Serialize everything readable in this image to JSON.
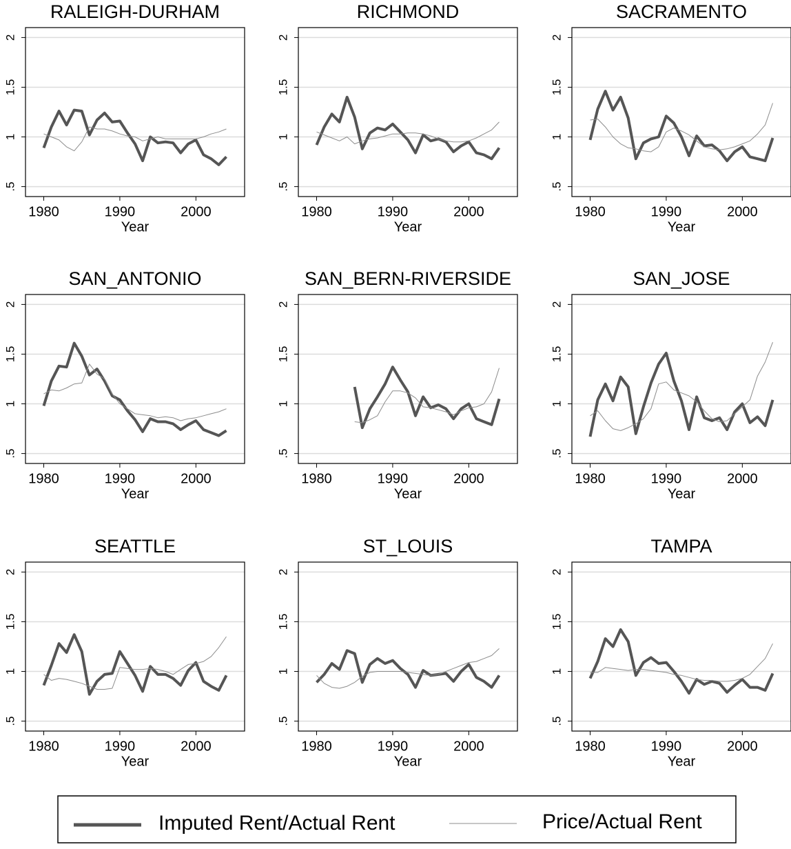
{
  "chart_data": [
    {
      "type": "line",
      "title": "RALEIGH-DURHAM",
      "xlabel": "Year",
      "x": [
        1980,
        1981,
        1982,
        1983,
        1984,
        1985,
        1986,
        1987,
        1988,
        1989,
        1990,
        1991,
        1992,
        1993,
        1994,
        1995,
        1996,
        1997,
        1998,
        1999,
        2000,
        2001,
        2002,
        2003,
        2004
      ],
      "xlim": [
        1977.6,
        2006.4
      ],
      "ylim": [
        0.4,
        2.1
      ],
      "xticks": [
        1980,
        1990,
        2000
      ],
      "yticks": [
        {
          "value": 0.5,
          "label": ".5"
        },
        1,
        1.5,
        2
      ],
      "grid": true,
      "series": [
        {
          "name": "Imputed Rent/Actual Rent",
          "color": "#555555",
          "values": [
            0.89,
            1.1,
            1.26,
            1.12,
            1.27,
            1.26,
            1.02,
            1.17,
            1.24,
            1.15,
            1.16,
            1.04,
            0.93,
            0.76,
            1.0,
            0.94,
            0.95,
            0.94,
            0.84,
            0.93,
            0.97,
            0.82,
            0.78,
            0.72,
            0.8
          ]
        },
        {
          "name": "Price/Actual Rent",
          "color": "#8c8c8c",
          "values": [
            1.03,
            1.0,
            0.97,
            0.9,
            0.86,
            0.95,
            1.1,
            1.08,
            1.08,
            1.06,
            1.03,
            1.01,
            1.0,
            0.96,
            0.98,
            1.0,
            0.98,
            0.98,
            0.98,
            0.98,
            0.98,
            1.0,
            1.03,
            1.05,
            1.08
          ]
        }
      ]
    },
    {
      "type": "line",
      "title": "RICHMOND",
      "xlabel": "Year",
      "x": [
        1980,
        1981,
        1982,
        1983,
        1984,
        1985,
        1986,
        1987,
        1988,
        1989,
        1990,
        1991,
        1992,
        1993,
        1994,
        1995,
        1996,
        1997,
        1998,
        1999,
        2000,
        2001,
        2002,
        2003,
        2004
      ],
      "xlim": [
        1977.6,
        2006.4
      ],
      "ylim": [
        0.4,
        2.1
      ],
      "xticks": [
        1980,
        1990,
        2000
      ],
      "yticks": [
        {
          "value": 0.5,
          "label": ".5"
        },
        1,
        1.5,
        2
      ],
      "grid": true,
      "series": [
        {
          "color": "#555555",
          "values": [
            0.92,
            1.1,
            1.23,
            1.15,
            1.4,
            1.2,
            0.88,
            1.04,
            1.09,
            1.07,
            1.13,
            1.05,
            0.97,
            0.84,
            1.02,
            0.96,
            0.98,
            0.95,
            0.85,
            0.91,
            0.95,
            0.84,
            0.82,
            0.78,
            0.89
          ]
        },
        {
          "color": "#8c8c8c",
          "values": [
            1.05,
            1.02,
            0.99,
            0.96,
            1.0,
            0.93,
            0.96,
            0.98,
            0.99,
            1.01,
            1.03,
            1.03,
            1.04,
            1.04,
            1.03,
            1.01,
            0.98,
            0.96,
            0.95,
            0.95,
            0.96,
            0.99,
            1.03,
            1.07,
            1.15
          ]
        }
      ]
    },
    {
      "type": "line",
      "title": "SACRAMENTO",
      "xlabel": "Year",
      "x": [
        1980,
        1981,
        1982,
        1983,
        1984,
        1985,
        1986,
        1987,
        1988,
        1989,
        1990,
        1991,
        1992,
        1993,
        1994,
        1995,
        1996,
        1997,
        1998,
        1999,
        2000,
        2001,
        2002,
        2003,
        2004
      ],
      "xlim": [
        1977.6,
        2006.4
      ],
      "ylim": [
        0.4,
        2.1
      ],
      "xticks": [
        1980,
        1990,
        2000
      ],
      "yticks": [
        {
          "value": 0.5,
          "label": ".5"
        },
        1,
        1.5,
        2
      ],
      "grid": true,
      "series": [
        {
          "color": "#555555",
          "values": [
            0.97,
            1.28,
            1.46,
            1.27,
            1.4,
            1.19,
            0.78,
            0.94,
            0.98,
            1.0,
            1.21,
            1.14,
            1.0,
            0.81,
            1.01,
            0.91,
            0.92,
            0.86,
            0.76,
            0.85,
            0.9,
            0.8,
            0.78,
            0.76,
            0.99
          ]
        },
        {
          "color": "#8c8c8c",
          "values": [
            1.17,
            1.18,
            1.1,
            1.0,
            0.93,
            0.89,
            0.88,
            0.86,
            0.85,
            0.9,
            1.05,
            1.09,
            1.06,
            1.02,
            0.96,
            0.9,
            0.88,
            0.87,
            0.88,
            0.9,
            0.93,
            0.96,
            1.03,
            1.12,
            1.34
          ]
        }
      ]
    },
    {
      "type": "line",
      "title": "SAN_ANTONIO",
      "xlabel": "Year",
      "x": [
        1980,
        1981,
        1982,
        1983,
        1984,
        1985,
        1986,
        1987,
        1988,
        1989,
        1990,
        1991,
        1992,
        1993,
        1994,
        1995,
        1996,
        1997,
        1998,
        1999,
        2000,
        2001,
        2002,
        2003,
        2004
      ],
      "xlim": [
        1977.6,
        2006.4
      ],
      "ylim": [
        0.4,
        2.1
      ],
      "xticks": [
        1980,
        1990,
        2000
      ],
      "yticks": [
        {
          "value": 0.5,
          "label": ".5"
        },
        1,
        1.5,
        2
      ],
      "grid": true,
      "series": [
        {
          "color": "#555555",
          "values": [
            0.98,
            1.23,
            1.38,
            1.37,
            1.61,
            1.48,
            1.29,
            1.35,
            1.23,
            1.08,
            1.04,
            0.93,
            0.84,
            0.72,
            0.85,
            0.82,
            0.82,
            0.8,
            0.74,
            0.79,
            0.83,
            0.74,
            0.71,
            0.68,
            0.73
          ]
        },
        {
          "color": "#8c8c8c",
          "values": [
            1.1,
            1.14,
            1.13,
            1.16,
            1.2,
            1.21,
            1.4,
            1.3,
            1.25,
            1.1,
            1.0,
            0.95,
            0.9,
            0.89,
            0.88,
            0.86,
            0.87,
            0.86,
            0.83,
            0.85,
            0.86,
            0.88,
            0.9,
            0.92,
            0.95
          ]
        }
      ]
    },
    {
      "type": "line",
      "title": "SAN_BERN-RIVERSIDE",
      "xlabel": "Year",
      "x": [
        1980,
        1981,
        1982,
        1983,
        1984,
        1985,
        1986,
        1987,
        1988,
        1989,
        1990,
        1991,
        1992,
        1993,
        1994,
        1995,
        1996,
        1997,
        1998,
        1999,
        2000,
        2001,
        2002,
        2003,
        2004
      ],
      "xlim": [
        1977.6,
        2006.4
      ],
      "ylim": [
        0.4,
        2.1
      ],
      "xticks": [
        1980,
        1990,
        2000
      ],
      "yticks": [
        {
          "value": 0.5,
          "label": ".5"
        },
        1,
        1.5,
        2
      ],
      "grid": true,
      "series": [
        {
          "color": "#555555",
          "values": [
            null,
            null,
            null,
            null,
            null,
            1.17,
            0.76,
            0.95,
            1.07,
            1.2,
            1.37,
            1.24,
            1.12,
            0.88,
            1.07,
            0.96,
            0.99,
            0.95,
            0.85,
            0.95,
            1.0,
            0.85,
            0.82,
            0.79,
            1.05
          ]
        },
        {
          "color": "#8c8c8c",
          "values": [
            null,
            null,
            null,
            null,
            null,
            0.82,
            0.81,
            0.84,
            0.88,
            1.02,
            1.13,
            1.13,
            1.11,
            1.06,
            0.97,
            0.96,
            0.94,
            0.92,
            0.89,
            0.93,
            0.96,
            0.97,
            1.0,
            1.12,
            1.36
          ]
        }
      ]
    },
    {
      "type": "line",
      "title": "SAN_JOSE",
      "xlabel": "Year",
      "x": [
        1980,
        1981,
        1982,
        1983,
        1984,
        1985,
        1986,
        1987,
        1988,
        1989,
        1990,
        1991,
        1992,
        1993,
        1994,
        1995,
        1996,
        1997,
        1998,
        1999,
        2000,
        2001,
        2002,
        2003,
        2004
      ],
      "xlim": [
        1977.6,
        2006.4
      ],
      "ylim": [
        0.4,
        2.1
      ],
      "xticks": [
        1980,
        1990,
        2000
      ],
      "yticks": [
        {
          "value": 0.5,
          "label": ".5"
        },
        1,
        1.5,
        2
      ],
      "grid": true,
      "series": [
        {
          "color": "#555555",
          "values": [
            0.67,
            1.04,
            1.2,
            1.03,
            1.27,
            1.17,
            0.7,
            0.97,
            1.21,
            1.4,
            1.51,
            1.23,
            1.03,
            0.74,
            1.07,
            0.86,
            0.83,
            0.86,
            0.74,
            0.92,
            1.0,
            0.81,
            0.87,
            0.78,
            1.04
          ]
        },
        {
          "color": "#8c8c8c",
          "values": [
            0.88,
            0.93,
            0.83,
            0.75,
            0.73,
            0.76,
            0.8,
            0.85,
            0.95,
            1.2,
            1.22,
            1.14,
            1.11,
            1.08,
            1.02,
            0.93,
            0.85,
            0.82,
            0.83,
            0.9,
            0.97,
            1.04,
            1.28,
            1.42,
            1.62
          ]
        }
      ]
    },
    {
      "type": "line",
      "title": "SEATTLE",
      "xlabel": "Year",
      "x": [
        1980,
        1981,
        1982,
        1983,
        1984,
        1985,
        1986,
        1987,
        1988,
        1989,
        1990,
        1991,
        1992,
        1993,
        1994,
        1995,
        1996,
        1997,
        1998,
        1999,
        2000,
        2001,
        2002,
        2003,
        2004
      ],
      "xlim": [
        1977.6,
        2006.4
      ],
      "ylim": [
        0.4,
        2.1
      ],
      "xticks": [
        1980,
        1990,
        2000
      ],
      "yticks": [
        {
          "value": 0.5,
          "label": ".5"
        },
        1,
        1.5,
        2
      ],
      "grid": true,
      "series": [
        {
          "color": "#555555",
          "values": [
            0.86,
            1.06,
            1.28,
            1.19,
            1.37,
            1.2,
            0.77,
            0.9,
            0.97,
            0.98,
            1.2,
            1.08,
            0.96,
            0.8,
            1.05,
            0.97,
            0.97,
            0.93,
            0.86,
            1.01,
            1.09,
            0.9,
            0.85,
            0.81,
            0.96
          ]
        },
        {
          "color": "#8c8c8c",
          "values": [
            0.97,
            0.91,
            0.93,
            0.92,
            0.9,
            0.88,
            0.85,
            0.82,
            0.82,
            0.83,
            1.04,
            1.03,
            1.02,
            1.02,
            1.03,
            1.02,
            1.0,
            0.97,
            1.02,
            1.07,
            1.08,
            1.1,
            1.15,
            1.24,
            1.35
          ]
        }
      ]
    },
    {
      "type": "line",
      "title": "ST_LOUIS",
      "xlabel": "Year",
      "x": [
        1980,
        1981,
        1982,
        1983,
        1984,
        1985,
        1986,
        1987,
        1988,
        1989,
        1990,
        1991,
        1992,
        1993,
        1994,
        1995,
        1996,
        1997,
        1998,
        1999,
        2000,
        2001,
        2002,
        2003,
        2004
      ],
      "xlim": [
        1977.6,
        2006.4
      ],
      "ylim": [
        0.4,
        2.1
      ],
      "xticks": [
        1980,
        1990,
        2000
      ],
      "yticks": [
        {
          "value": 0.5,
          "label": ".5"
        },
        1,
        1.5,
        2
      ],
      "grid": true,
      "series": [
        {
          "color": "#555555",
          "values": [
            0.89,
            0.97,
            1.08,
            1.02,
            1.21,
            1.18,
            0.89,
            1.07,
            1.13,
            1.08,
            1.11,
            1.03,
            0.97,
            0.84,
            1.01,
            0.96,
            0.97,
            0.98,
            0.9,
            1.0,
            1.07,
            0.94,
            0.9,
            0.84,
            0.96
          ]
        },
        {
          "color": "#8c8c8c",
          "values": [
            0.96,
            0.88,
            0.84,
            0.83,
            0.85,
            0.89,
            0.95,
            0.99,
            1.0,
            1.0,
            1.0,
            1.0,
            0.99,
            0.98,
            0.97,
            0.96,
            0.97,
            1.0,
            1.03,
            1.06,
            1.09,
            1.1,
            1.13,
            1.16,
            1.23
          ]
        }
      ]
    },
    {
      "type": "line",
      "title": "TAMPA",
      "xlabel": "Year",
      "x": [
        1980,
        1981,
        1982,
        1983,
        1984,
        1985,
        1986,
        1987,
        1988,
        1989,
        1990,
        1991,
        1992,
        1993,
        1994,
        1995,
        1996,
        1997,
        1998,
        1999,
        2000,
        2001,
        2002,
        2003,
        2004
      ],
      "xlim": [
        1977.6,
        2006.4
      ],
      "ylim": [
        0.4,
        2.1
      ],
      "xticks": [
        1980,
        1990,
        2000
      ],
      "yticks": [
        {
          "value": 0.5,
          "label": ".5"
        },
        1,
        1.5,
        2
      ],
      "grid": true,
      "series": [
        {
          "color": "#555555",
          "values": [
            0.93,
            1.1,
            1.33,
            1.25,
            1.42,
            1.3,
            0.96,
            1.09,
            1.14,
            1.08,
            1.09,
            1.0,
            0.9,
            0.78,
            0.92,
            0.87,
            0.9,
            0.88,
            0.79,
            0.86,
            0.92,
            0.84,
            0.84,
            0.81,
            0.98
          ]
        },
        {
          "color": "#8c8c8c",
          "values": [
            0.99,
            0.99,
            1.04,
            1.03,
            1.02,
            1.01,
            1.02,
            1.02,
            1.01,
            1.0,
            0.99,
            0.97,
            0.96,
            0.94,
            0.92,
            0.91,
            0.91,
            0.9,
            0.9,
            0.91,
            0.93,
            0.97,
            1.05,
            1.13,
            1.28
          ]
        }
      ]
    }
  ]
}
